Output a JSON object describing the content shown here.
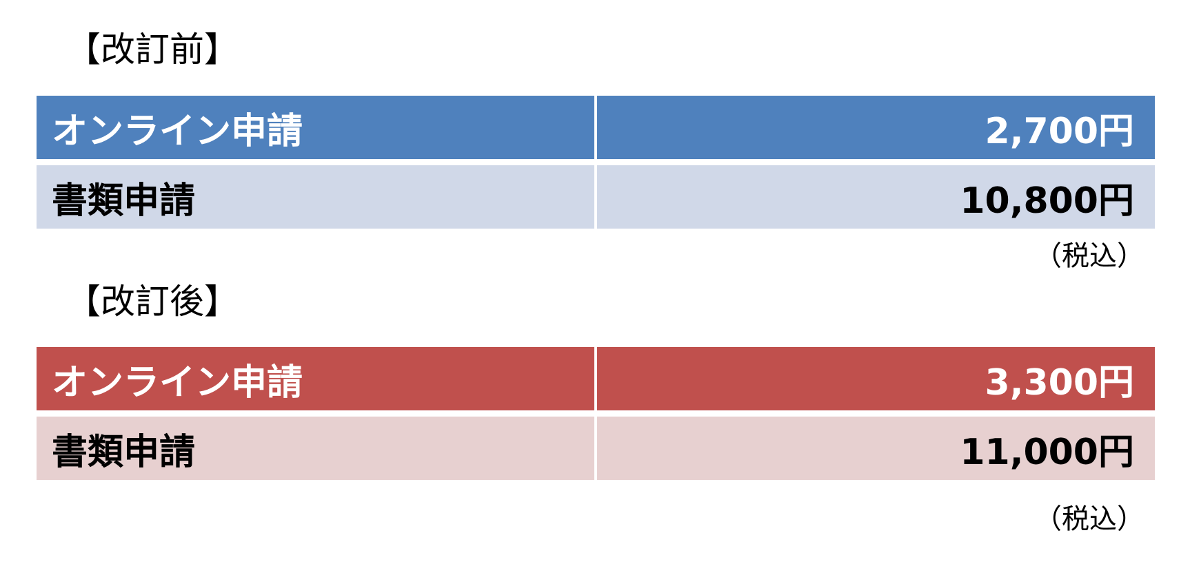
{
  "sections": [
    {
      "title": "【改訂前】",
      "rows": [
        [
          "オンライン申請",
          "2,700円"
        ],
        [
          "書類申請",
          "10,800円"
        ]
      ],
      "note": "（税込）"
    },
    {
      "title": "【改訂後】",
      "rows": [
        [
          "オンライン申請",
          "3,300円"
        ],
        [
          "書類申請",
          "11,000円"
        ]
      ],
      "note": "（税込）"
    }
  ]
}
